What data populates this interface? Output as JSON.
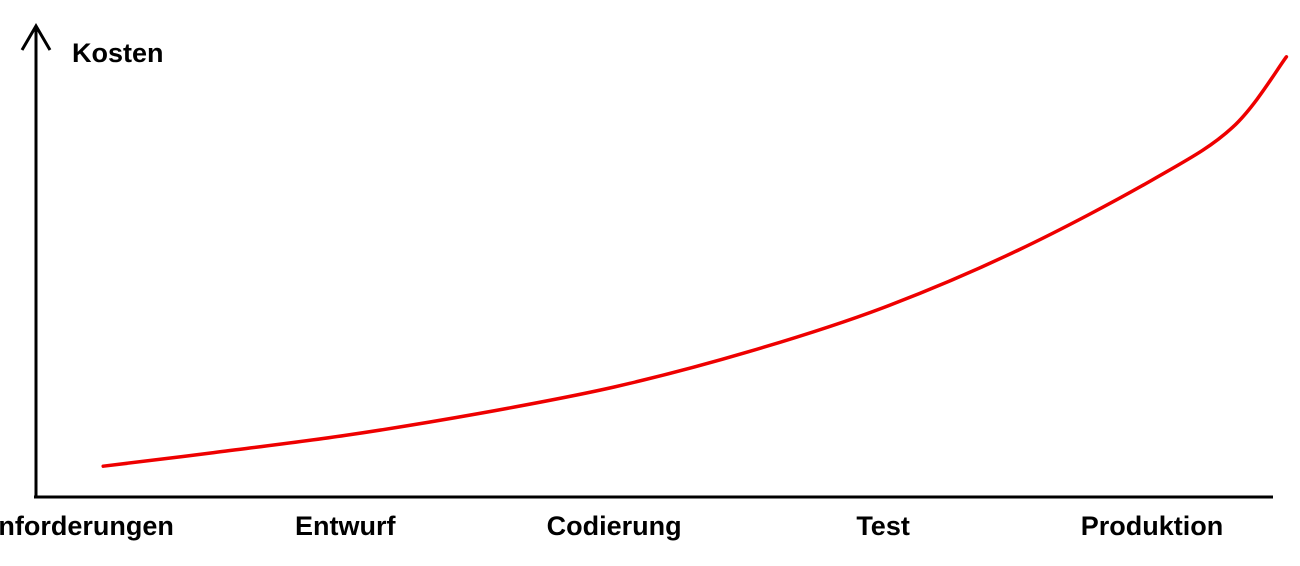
{
  "chart_data": {
    "type": "line",
    "title": "",
    "ylabel": "Kosten",
    "xlabel": "",
    "categories": [
      "Anforderungen",
      "Entwurf",
      "Codierung",
      "Test",
      "Produktion"
    ],
    "grid": false,
    "series": [
      {
        "color": "#ee0000",
        "x": [
          0.1,
          0.5,
          1.0,
          1.5,
          2.0,
          2.5,
          3.0,
          3.5,
          4.0,
          4.3,
          4.5
        ],
        "y": [
          0.07,
          0.1,
          0.14,
          0.19,
          0.25,
          0.33,
          0.43,
          0.56,
          0.72,
          0.84,
          1.0
        ]
      }
    ],
    "xlim": [
      -0.15,
      4.45
    ],
    "ylim": [
      0,
      1.07
    ]
  }
}
